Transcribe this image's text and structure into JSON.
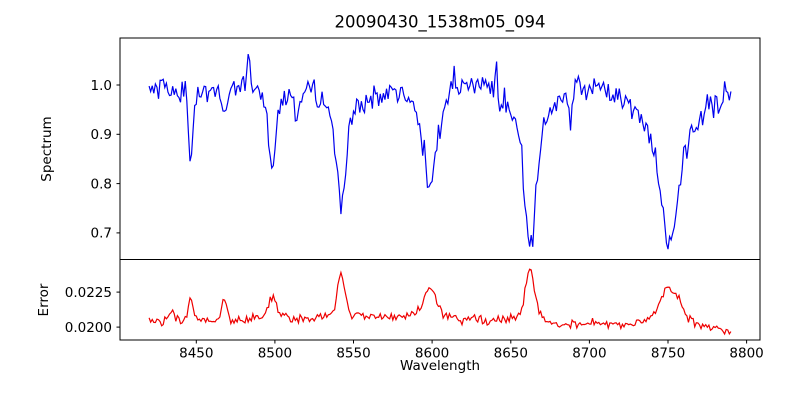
{
  "figure": {
    "title": "20090430_1538m05_094",
    "background": "#ffffff",
    "spine_color": "#000000"
  },
  "chart_data": [
    {
      "id": "spectrum",
      "type": "line",
      "title": "20090430_1538m05_094",
      "ylabel": "Spectrum",
      "line_color": "#0000ee",
      "legend": "none",
      "grid": false,
      "xlim": [
        8401.5,
        8808.5
      ],
      "ylim": [
        0.646,
        1.0953
      ],
      "yticks": {
        "values": [
          0.7,
          0.8,
          0.9,
          1.0
        ],
        "labels": [
          "0.7",
          "0.8",
          "0.9",
          "1.0"
        ]
      },
      "x_start": 8420,
      "x_end": 8790,
      "x_step": 1,
      "continuum": [
        [
          8420,
          1.005
        ],
        [
          8460,
          0.985
        ],
        [
          8475,
          1.0
        ],
        [
          8490,
          1.0
        ],
        [
          8520,
          0.982
        ],
        [
          8545,
          0.977
        ],
        [
          8562,
          0.972
        ],
        [
          8578,
          0.99
        ],
        [
          8600,
          0.988
        ],
        [
          8620,
          1.0
        ],
        [
          8640,
          1.005
        ],
        [
          8660,
          0.998
        ],
        [
          8680,
          0.99
        ],
        [
          8700,
          0.998
        ],
        [
          8720,
          0.985
        ],
        [
          8750,
          0.98
        ],
        [
          8770,
          0.975
        ],
        [
          8790,
          0.982
        ]
      ],
      "absorption_lines": [
        {
          "center": 8433,
          "depth": 0.03,
          "sigma": 1.2
        },
        {
          "center": 8446.5,
          "depth": 0.16,
          "sigma": 1.3
        },
        {
          "center": 8468,
          "depth": 0.055,
          "sigma": 1.5
        },
        {
          "center": 8498.3,
          "depth": 0.13,
          "sigma": 2.2
        },
        {
          "center": 8498.3,
          "depth": 0.03,
          "sigma": 7
        },
        {
          "center": 8514,
          "depth": 0.04,
          "sigma": 1.2
        },
        {
          "center": 8542.3,
          "depth": 0.19,
          "sigma": 2.6
        },
        {
          "center": 8542.3,
          "depth": 0.04,
          "sigma": 9
        },
        {
          "center": 8598.5,
          "depth": 0.13,
          "sigma": 3.2
        },
        {
          "center": 8598.5,
          "depth": 0.07,
          "sigma": 9
        },
        {
          "center": 8662.3,
          "depth": 0.24,
          "sigma": 3.5
        },
        {
          "center": 8662.3,
          "depth": 0.09,
          "sigma": 12
        },
        {
          "center": 8688,
          "depth": 0.04,
          "sigma": 1.2
        },
        {
          "center": 8750.9,
          "depth": 0.18,
          "sigma": 4.5
        },
        {
          "center": 8750.9,
          "depth": 0.12,
          "sigma": 15
        }
      ],
      "emission_spikes": [
        {
          "center": 8483,
          "height": 0.065,
          "sigma": 0.8
        },
        {
          "center": 8614,
          "height": 0.05,
          "sigma": 0.8
        },
        {
          "center": 8641,
          "height": 0.04,
          "sigma": 0.8
        },
        {
          "center": 8775,
          "height": 0.04,
          "sigma": 0.8
        }
      ],
      "noise_sigma": 0.013,
      "noise_seed": 20090430
    },
    {
      "id": "error",
      "type": "line",
      "ylabel": "Error",
      "xlabel": "Wavelength",
      "line_color": "#ee0000",
      "legend": "none",
      "grid": false,
      "xlim": [
        8401.5,
        8808.5
      ],
      "ylim": [
        0.01908,
        0.02483
      ],
      "yticks": {
        "values": [
          0.02,
          0.0225
        ],
        "labels": [
          "0.0200",
          "0.0225"
        ]
      },
      "xticks": {
        "values": [
          8450,
          8500,
          8550,
          8600,
          8650,
          8700,
          8750,
          8800
        ],
        "labels": [
          "8450",
          "8500",
          "8550",
          "8600",
          "8650",
          "8700",
          "8750",
          "8800"
        ]
      },
      "x_start": 8420,
      "x_end": 8790,
      "x_step": 1,
      "baseline": [
        [
          8420,
          0.02045
        ],
        [
          8470,
          0.0205
        ],
        [
          8520,
          0.0206
        ],
        [
          8565,
          0.0207
        ],
        [
          8600,
          0.0206
        ],
        [
          8640,
          0.0204
        ],
        [
          8680,
          0.0201
        ],
        [
          8705,
          0.0203
        ],
        [
          8725,
          0.0201
        ],
        [
          8760,
          0.0202
        ],
        [
          8790,
          0.0197
        ]
      ],
      "bumps": [
        {
          "center": 8434,
          "height": 0.0006,
          "sigma": 2
        },
        {
          "center": 8446.5,
          "height": 0.0016,
          "sigma": 1.6
        },
        {
          "center": 8468,
          "height": 0.0015,
          "sigma": 1.6
        },
        {
          "center": 8498.3,
          "height": 0.0012,
          "sigma": 2.5
        },
        {
          "center": 8498.3,
          "height": 0.0003,
          "sigma": 8
        },
        {
          "center": 8542.3,
          "height": 0.0026,
          "sigma": 2.2
        },
        {
          "center": 8542.3,
          "height": 0.0005,
          "sigma": 8
        },
        {
          "center": 8598.5,
          "height": 0.0017,
          "sigma": 4
        },
        {
          "center": 8598.5,
          "height": 0.0005,
          "sigma": 10
        },
        {
          "center": 8662.3,
          "height": 0.0032,
          "sigma": 3
        },
        {
          "center": 8662.3,
          "height": 0.0006,
          "sigma": 10
        },
        {
          "center": 8750.9,
          "height": 0.002,
          "sigma": 5.5
        },
        {
          "center": 8750.9,
          "height": 0.0006,
          "sigma": 14
        }
      ],
      "noise_sigma": 0.00016,
      "noise_seed": 1538
    }
  ]
}
